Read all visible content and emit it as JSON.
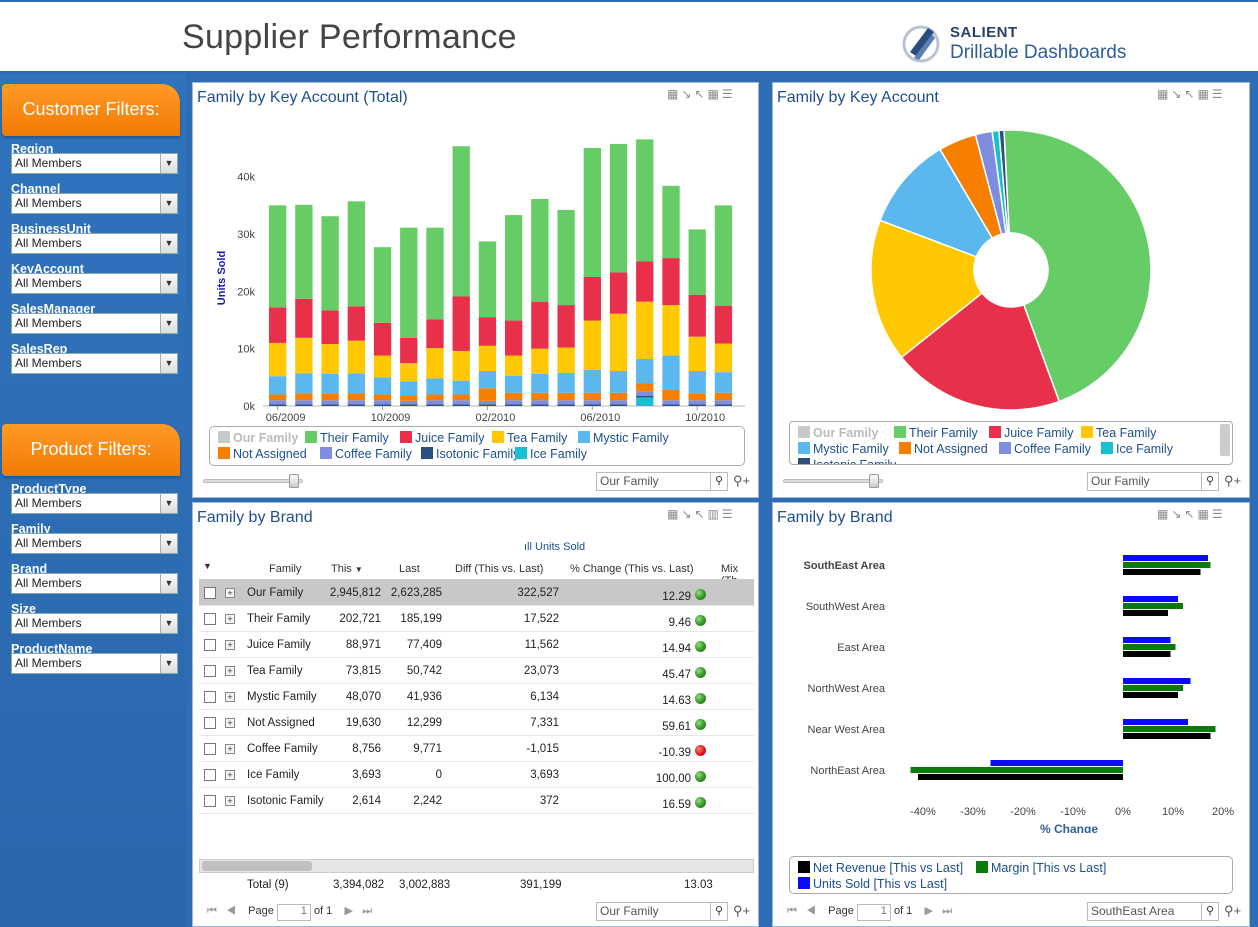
{
  "header": {
    "title": "Supplier Performance",
    "brand_name": "SALIENT",
    "brand_sub": "Drillable Dashboards"
  },
  "filters": {
    "customer_title": "Customer Filters:",
    "customer": [
      {
        "label": "Region",
        "value": "All Members"
      },
      {
        "label": "Channel",
        "value": "All Members"
      },
      {
        "label": "BusinessUnit",
        "value": "All Members"
      },
      {
        "label": "KeyAccount",
        "value": "All Members"
      },
      {
        "label": "SalesManager",
        "value": "All Members"
      },
      {
        "label": "SalesRep",
        "value": "All Members"
      }
    ],
    "product_title": "Product Filters:",
    "product": [
      {
        "label": "ProductType",
        "value": "All Members"
      },
      {
        "label": "Family",
        "value": "All Members"
      },
      {
        "label": "Brand",
        "value": "All Members"
      },
      {
        "label": "Size",
        "value": "All Members"
      },
      {
        "label": "ProductName",
        "value": "All Members"
      }
    ]
  },
  "colors": {
    "Our Family": "#c9c9c9",
    "Their Family": "#66cc66",
    "Juice Family": "#e8304a",
    "Tea Family": "#ffc800",
    "Mystic Family": "#5bb8ef",
    "Not Assigned": "#f77f00",
    "Coffee Family": "#7f8de0",
    "Isotonic Family": "#2b4f7e",
    "Ice Family": "#17bfcf",
    "Net Revenue": "#000000",
    "Margin": "#0a7a0a",
    "Units Sold": "#0a0aff"
  },
  "panel1": {
    "title": "Family by Key Account (Total)",
    "search": "Our Family",
    "chart_data": {
      "type": "bar",
      "stacked": true,
      "ylabel": "Units Sold",
      "ylim": [
        0,
        45000
      ],
      "y_ticks": [
        "0k",
        "10k",
        "20k",
        "30k",
        "40k"
      ],
      "x_tick_labels": [
        "06/2009",
        "10/2009",
        "02/2010",
        "06/2010",
        "10/2010"
      ],
      "x_tick_index": [
        0,
        4,
        8,
        12,
        16
      ],
      "categories": [
        "06/2009",
        "07/2009",
        "08/2009",
        "09/2009",
        "10/2009",
        "11/2009",
        "12/2009",
        "01/2010",
        "02/2010",
        "03/2010",
        "04/2010",
        "05/2010",
        "06/2010",
        "07/2010",
        "08/2010",
        "09/2010",
        "10/2010",
        "11/2010"
      ],
      "series": [
        {
          "name": "Ice Family",
          "values": [
            0,
            0,
            0,
            0,
            0,
            0,
            0,
            0,
            0,
            0,
            0,
            0,
            0,
            0,
            1500,
            0,
            0,
            0
          ]
        },
        {
          "name": "Isotonic Family",
          "values": [
            300,
            300,
            300,
            300,
            300,
            300,
            300,
            300,
            300,
            300,
            300,
            300,
            300,
            300,
            300,
            300,
            300,
            300
          ]
        },
        {
          "name": "Coffee Family",
          "values": [
            700,
            700,
            700,
            700,
            700,
            600,
            700,
            700,
            600,
            700,
            700,
            700,
            700,
            700,
            700,
            700,
            700,
            700
          ]
        },
        {
          "name": "Not Assigned",
          "values": [
            1000,
            1200,
            1200,
            1200,
            1000,
            1000,
            1000,
            1000,
            2200,
            1300,
            1300,
            1300,
            1300,
            1300,
            1500,
            1800,
            1100,
            1300
          ]
        },
        {
          "name": "Mystic Family",
          "values": [
            3200,
            3500,
            3400,
            3500,
            3000,
            2400,
            2800,
            2400,
            3000,
            3000,
            3300,
            3500,
            4000,
            3800,
            4200,
            6000,
            4000,
            3600
          ]
        },
        {
          "name": "Tea Family",
          "values": [
            5800,
            6200,
            5200,
            5700,
            3800,
            3200,
            5300,
            5200,
            4400,
            3500,
            4400,
            4400,
            8600,
            10000,
            10000,
            8800,
            6000,
            5000
          ]
        },
        {
          "name": "Juice Family",
          "values": [
            6200,
            6800,
            5900,
            6000,
            5700,
            4400,
            5000,
            9500,
            5000,
            6100,
            8200,
            7400,
            7600,
            7200,
            7000,
            8200,
            7300,
            6600
          ]
        },
        {
          "name": "Their Family",
          "values": [
            17800,
            16400,
            16400,
            18300,
            13200,
            19200,
            16000,
            26200,
            13200,
            18400,
            17900,
            16600,
            22500,
            22400,
            21300,
            12600,
            11400,
            17500
          ]
        }
      ]
    },
    "legend": [
      "Our Family",
      "Their Family",
      "Juice Family",
      "Tea Family",
      "Mystic Family",
      "Not Assigned",
      "Coffee Family",
      "Isotonic Family",
      "Ice Family"
    ]
  },
  "panel2": {
    "title": "Family by Key Account",
    "search": "Our Family",
    "chart_data": {
      "type": "pie",
      "labels": [
        "Their Family",
        "Juice Family",
        "Tea Family",
        "Mystic Family",
        "Not Assigned",
        "Coffee Family",
        "Ice Family",
        "Isotonic Family"
      ],
      "values": [
        46.6,
        20.5,
        17.0,
        11.1,
        4.5,
        2.0,
        0.8,
        0.6
      ]
    },
    "legend": [
      "Our Family",
      "Their Family",
      "Juice Family",
      "Tea Family",
      "Mystic Family",
      "Not Assigned",
      "Coffee Family",
      "Ice Family",
      "Isotonic Family"
    ]
  },
  "panel3": {
    "title": "Family by Brand",
    "group_header": "Units Sold",
    "columns": [
      "Family",
      "This",
      "Last",
      "Diff (This vs. Last)",
      "% Change (This vs. Last)",
      "Mix (Th"
    ],
    "rows": [
      {
        "family": "Our Family",
        "this": "2,945,812",
        "last": "2,623,285",
        "diff": "322,527",
        "pct": "12.29",
        "status": "#2e8b1e"
      },
      {
        "family": "Their Family",
        "this": "202,721",
        "last": "185,199",
        "diff": "17,522",
        "pct": "9.46",
        "status": "#2e8b1e"
      },
      {
        "family": "Juice Family",
        "this": "88,971",
        "last": "77,409",
        "diff": "11,562",
        "pct": "14.94",
        "status": "#2e8b1e"
      },
      {
        "family": "Tea Family",
        "this": "73,815",
        "last": "50,742",
        "diff": "23,073",
        "pct": "45.47",
        "status": "#2e8b1e"
      },
      {
        "family": "Mystic Family",
        "this": "48,070",
        "last": "41,936",
        "diff": "6,134",
        "pct": "14.63",
        "status": "#2e8b1e"
      },
      {
        "family": "Not Assigned",
        "this": "19,630",
        "last": "12,299",
        "diff": "7,331",
        "pct": "59.61",
        "status": "#2e8b1e"
      },
      {
        "family": "Coffee Family",
        "this": "8,756",
        "last": "9,771",
        "diff": "-1,015",
        "pct": "-10.39",
        "status": "#d81010"
      },
      {
        "family": "Ice Family",
        "this": "3,693",
        "last": "0",
        "diff": "3,693",
        "pct": "100.00",
        "status": "#2e8b1e"
      },
      {
        "family": "Isotonic Family",
        "this": "2,614",
        "last": "2,242",
        "diff": "372",
        "pct": "16.59",
        "status": "#2e8b1e"
      }
    ],
    "total": {
      "label": "Total (9)",
      "this": "3,394,082",
      "last": "3,002,883",
      "diff": "391,199",
      "pct": "13.03"
    },
    "pager": {
      "page_label": "Page",
      "page": "1",
      "of": "of 1"
    },
    "search": "Our Family"
  },
  "panel4": {
    "title": "Family by Brand",
    "search": "SouthEast Area",
    "pager": {
      "page_label": "Page",
      "page": "1",
      "of": "of 1"
    },
    "chart_data": {
      "type": "bar",
      "orientation": "horizontal",
      "xlabel": "% Change",
      "xlim": [
        -45,
        22
      ],
      "x_ticks": [
        "-40%",
        "-30%",
        "-20%",
        "-10%",
        "0%",
        "10%",
        "20%"
      ],
      "categories": [
        "SouthEast Area",
        "SouthWest Area",
        "East Area",
        "NorthWest Area",
        "Near West Area",
        "NorthEast Area"
      ],
      "series": [
        {
          "name": "Units Sold [This vs Last]",
          "values": [
            17,
            11,
            9.5,
            13.5,
            13,
            -26.5
          ]
        },
        {
          "name": "Margin [This vs Last]",
          "values": [
            17.5,
            12,
            10.5,
            12,
            18.5,
            -42.5
          ]
        },
        {
          "name": "Net Revenue [This vs Last]",
          "values": [
            15.5,
            9,
            9.5,
            11,
            17.5,
            -41
          ]
        }
      ]
    },
    "legend": [
      {
        "name": "Net Revenue [This vs Last]",
        "color": "#000000"
      },
      {
        "name": "Margin [This vs Last]",
        "color": "#0a7a0a"
      },
      {
        "name": "Units Sold [This vs Last]",
        "color": "#0a0aff"
      }
    ]
  }
}
